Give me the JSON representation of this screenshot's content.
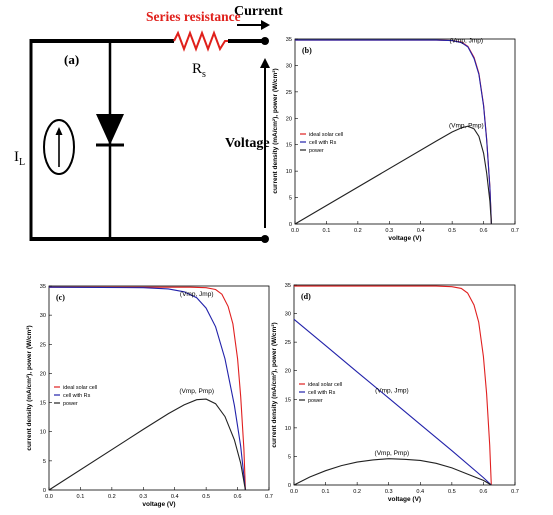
{
  "circuit": {
    "panel_label": "(a)",
    "series_resistance_label": "Series resistance",
    "current_label": "Current",
    "resistor_symbol": "R",
    "resistor_subscript": "s",
    "source_symbol": "I",
    "source_subscript": "L",
    "voltage_label": "Voltage",
    "resistor_color": "#e0201b"
  },
  "chart_data": [
    {
      "panel": "(b)",
      "type": "line",
      "xlabel": "voltage (V)",
      "ylabel": "current density (mA/cm²), power (W/cm²)",
      "xlim": [
        0,
        0.7
      ],
      "ylim": [
        0,
        35
      ],
      "xticks": [
        "0.0",
        "0.1",
        "0.2",
        "0.3",
        "0.4",
        "0.5",
        "0.6",
        "0.7"
      ],
      "yticks": [
        "0",
        "5",
        "10",
        "15",
        "20",
        "25",
        "30",
        "35"
      ],
      "legend": {
        "placement": "middle-left",
        "entries": [
          "ideal solar cell",
          "cell with Rs",
          "power"
        ]
      },
      "annotations": [
        {
          "text": "(Vmp, Jmp)",
          "x": 0.545,
          "y": 34.7
        },
        {
          "text": "(Vmp, Pmp)",
          "x": 0.545,
          "y": 18.6
        }
      ],
      "series": [
        {
          "name": "ideal solar cell",
          "color": "#e02020",
          "x": [
            0,
            0.45,
            0.5,
            0.53,
            0.55,
            0.57,
            0.585,
            0.6,
            0.61,
            0.62,
            0.625
          ],
          "y": [
            34.8,
            34.8,
            34.7,
            34.4,
            33.6,
            31.5,
            28.5,
            22.5,
            16,
            7,
            0
          ]
        },
        {
          "name": "cell with Rs",
          "color": "#2222aa",
          "x": [
            0,
            0.45,
            0.5,
            0.53,
            0.55,
            0.57,
            0.585,
            0.6,
            0.61,
            0.62,
            0.625
          ],
          "y": [
            34.8,
            34.8,
            34.7,
            34.3,
            33.5,
            31.3,
            28.3,
            22.3,
            15.8,
            6.9,
            0
          ]
        },
        {
          "name": "power",
          "color": "#222222",
          "x": [
            0,
            0.45,
            0.5,
            0.53,
            0.55,
            0.57,
            0.585,
            0.6,
            0.61,
            0.62,
            0.625
          ],
          "y": [
            0,
            15.7,
            17.4,
            18.2,
            18.5,
            18.0,
            16.6,
            13.4,
            9.6,
            4.3,
            0
          ]
        }
      ]
    },
    {
      "panel": "(c)",
      "type": "line",
      "xlabel": "voltage (V)",
      "ylabel": "current density (mA/cm²), power (W/cm²)",
      "xlim": [
        0,
        0.7
      ],
      "ylim": [
        0,
        35
      ],
      "xticks": [
        "0.0",
        "0.1",
        "0.2",
        "0.3",
        "0.4",
        "0.5",
        "0.6",
        "0.7"
      ],
      "yticks": [
        "0",
        "5",
        "10",
        "15",
        "20",
        "25",
        "30",
        "35"
      ],
      "legend": {
        "placement": "middle-left",
        "entries": [
          "ideal solar cell",
          "cell with Rs",
          "power"
        ]
      },
      "annotations": [
        {
          "text": "(Vmp, Jmp)",
          "x": 0.47,
          "y": 33.6
        },
        {
          "text": "(Vmp, Pmp)",
          "x": 0.47,
          "y": 17.0
        }
      ],
      "series": [
        {
          "name": "ideal solar cell",
          "color": "#e02020",
          "x": [
            0,
            0.45,
            0.5,
            0.53,
            0.55,
            0.57,
            0.585,
            0.6,
            0.61,
            0.62,
            0.625
          ],
          "y": [
            34.8,
            34.8,
            34.7,
            34.4,
            33.6,
            31.5,
            28.5,
            22.5,
            16,
            7,
            0
          ]
        },
        {
          "name": "cell with Rs",
          "color": "#2222aa",
          "x": [
            0,
            0.3,
            0.38,
            0.43,
            0.47,
            0.5,
            0.53,
            0.56,
            0.59,
            0.61,
            0.625
          ],
          "y": [
            34.8,
            34.7,
            34.5,
            34.0,
            33.0,
            31.2,
            28.0,
            22.5,
            14.5,
            7.5,
            0
          ]
        },
        {
          "name": "power",
          "color": "#222222",
          "x": [
            0,
            0.3,
            0.38,
            0.43,
            0.47,
            0.5,
            0.53,
            0.56,
            0.59,
            0.61,
            0.625
          ],
          "y": [
            0,
            10.4,
            13.1,
            14.6,
            15.5,
            15.6,
            14.8,
            12.6,
            8.6,
            4.6,
            0
          ]
        }
      ]
    },
    {
      "panel": "(d)",
      "type": "line",
      "xlabel": "voltage (V)",
      "ylabel": "current density (mA/cm²), power (W/cm²)",
      "xlim": [
        0,
        0.7
      ],
      "ylim": [
        0,
        35
      ],
      "xticks": [
        "0.0",
        "0.1",
        "0.2",
        "0.3",
        "0.4",
        "0.5",
        "0.6",
        "0.7"
      ],
      "yticks": [
        "0",
        "5",
        "10",
        "15",
        "20",
        "25",
        "30",
        "35"
      ],
      "legend": {
        "placement": "middle-left",
        "entries": [
          "ideal solar cell",
          "cell with Rs",
          "power"
        ]
      },
      "annotations": [
        {
          "text": "(Vmp, Jmp)",
          "x": 0.31,
          "y": 16.5
        },
        {
          "text": "(Vmp, Pmp)",
          "x": 0.31,
          "y": 5.6
        }
      ],
      "series": [
        {
          "name": "ideal solar cell",
          "color": "#e02020",
          "x": [
            0,
            0.45,
            0.5,
            0.53,
            0.55,
            0.57,
            0.585,
            0.6,
            0.61,
            0.62,
            0.625
          ],
          "y": [
            34.8,
            34.8,
            34.7,
            34.4,
            33.6,
            31.5,
            28.5,
            22.5,
            16,
            7,
            0
          ]
        },
        {
          "name": "cell with Rs",
          "color": "#2222aa",
          "x": [
            0,
            0.1,
            0.2,
            0.3,
            0.4,
            0.5,
            0.6,
            0.625
          ],
          "y": [
            29.0,
            24.4,
            19.8,
            15.2,
            10.6,
            6.0,
            1.3,
            0
          ]
        },
        {
          "name": "power",
          "color": "#222222",
          "x": [
            0,
            0.05,
            0.1,
            0.15,
            0.2,
            0.25,
            0.3,
            0.35,
            0.4,
            0.45,
            0.5,
            0.55,
            0.6,
            0.625
          ],
          "y": [
            0,
            1.4,
            2.5,
            3.4,
            4.0,
            4.4,
            4.6,
            4.5,
            4.3,
            3.8,
            3.0,
            1.9,
            0.8,
            0
          ]
        }
      ]
    }
  ]
}
